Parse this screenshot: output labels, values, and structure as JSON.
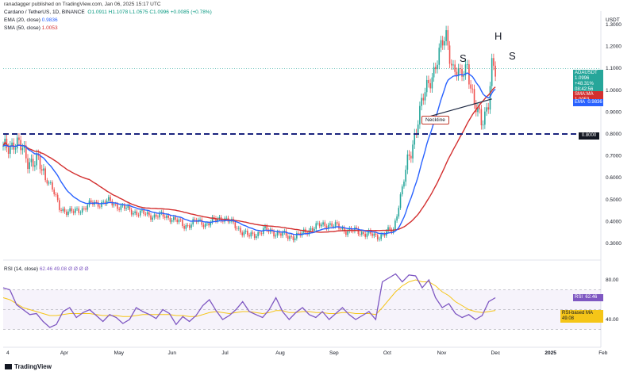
{
  "header": {
    "publisher": "ranadagger published on TradingView.com, Jan 06, 2025 15:17 UTC",
    "symbol": "Cardano / TetherUS, 1D, BINANCE",
    "ohlc": "O1.0911 H1.1078 L1.0575 C1.0996 +0.0085 (+0.78%)",
    "ema_label": "EMA (20, close)",
    "ema_value": "0.9836",
    "sma_label": "SMA (50, close)",
    "sma_value": "1.0053",
    "rsi_label": "RSI (14, close)",
    "rsi_values": "62.46 49.08 Ø Ø Ø Ø"
  },
  "currency": "USDT",
  "footer": {
    "brand": "TradingView"
  },
  "annotations": {
    "s_left": "S",
    "head": "H",
    "s_right": "S",
    "neckline": "Neckline"
  },
  "badges": {
    "symbol_name": "ADAUSDT",
    "price": "1.0996",
    "change": "+48.31%",
    "countdown": "08:42:56",
    "sma_tag": "SMA:MA",
    "sma_val": "1.0053",
    "ema_tag": "EMA",
    "ema_val": "0.9836",
    "level": "0.8000",
    "rsi_tag": "RSI",
    "rsi_val": "62.46",
    "rsi_ma_tag": "RSI-based MA",
    "rsi_ma_val": "49.08"
  },
  "colors": {
    "up": "#26a69a",
    "down": "#ef5350",
    "ema": "#2962ff",
    "sma": "#d32f2f",
    "rsi": "#7e57c2",
    "rsi_ma": "#f5c518",
    "level": "#1a237e"
  },
  "chart_data": [
    {
      "type": "candlestick",
      "title": "Cardano / TetherUS, 1D, BINANCE",
      "x_ticks": [
        "4",
        "Apr",
        "May",
        "Jun",
        "Jul",
        "Aug",
        "Sep",
        "Oct",
        "Nov",
        "Dec",
        "2025",
        "Feb"
      ],
      "y_ticks": [
        "0.3000",
        "0.4000",
        "0.5000",
        "0.6000",
        "0.7000",
        "0.8000",
        "0.9000",
        "1.0000",
        "1.1000",
        "1.2000",
        "1.3000"
      ],
      "ylim": [
        0.26,
        1.34
      ],
      "x_range_days": [
        0,
        340
      ],
      "anchors": [
        [
          0,
          0.72
        ],
        [
          6,
          0.77
        ],
        [
          14,
          0.69
        ],
        [
          20,
          0.66
        ],
        [
          27,
          0.57
        ],
        [
          32,
          0.46
        ],
        [
          40,
          0.44
        ],
        [
          50,
          0.48
        ],
        [
          60,
          0.49
        ],
        [
          72,
          0.45
        ],
        [
          82,
          0.43
        ],
        [
          95,
          0.42
        ],
        [
          103,
          0.38
        ],
        [
          110,
          0.4
        ],
        [
          116,
          0.39
        ],
        [
          125,
          0.42
        ],
        [
          132,
          0.38
        ],
        [
          140,
          0.33
        ],
        [
          148,
          0.36
        ],
        [
          155,
          0.35
        ],
        [
          162,
          0.33
        ],
        [
          170,
          0.34
        ],
        [
          175,
          0.37
        ],
        [
          185,
          0.39
        ],
        [
          195,
          0.36
        ],
        [
          205,
          0.35
        ],
        [
          212,
          0.33
        ],
        [
          218,
          0.35
        ],
        [
          222,
          0.36
        ],
        [
          226,
          0.52
        ],
        [
          232,
          0.72
        ],
        [
          236,
          0.88
        ],
        [
          240,
          0.98
        ],
        [
          244,
          1.08
        ],
        [
          248,
          1.16
        ],
        [
          252,
          1.25
        ],
        [
          256,
          1.1
        ],
        [
          260,
          1.05
        ],
        [
          264,
          1.13
        ],
        [
          268,
          0.92
        ],
        [
          272,
          0.86
        ],
        [
          276,
          0.95
        ],
        [
          278,
          1.1
        ],
        [
          280,
          1.07
        ]
      ],
      "level_line": 0.8,
      "neckline": {
        "from": [
          238,
          0.87
        ],
        "to": [
          278,
          0.96
        ]
      },
      "last_close": 1.0996,
      "ema20_last": 0.9836,
      "sma50_last": 1.0053
    },
    {
      "type": "line",
      "title": "RSI (14, close)",
      "y_ticks": [
        "40.00",
        "80.00"
      ],
      "ylim": [
        20,
        92
      ],
      "series": [
        {
          "name": "RSI",
          "values": [
            72,
            70,
            55,
            50,
            45,
            46,
            38,
            32,
            35,
            48,
            52,
            42,
            47,
            50,
            44,
            38,
            45,
            42,
            36,
            40,
            52,
            48,
            45,
            41,
            50,
            46,
            35,
            43,
            38,
            44,
            54,
            60,
            49,
            40,
            44,
            50,
            58,
            48,
            45,
            42,
            50,
            62,
            48,
            40,
            47,
            52,
            45,
            42,
            48,
            40,
            46,
            52,
            45,
            40,
            44,
            48,
            40,
            78,
            82,
            86,
            78,
            85,
            84,
            72,
            80,
            62,
            52,
            56,
            46,
            42,
            45,
            40,
            44,
            58,
            62
          ]
        },
        {
          "name": "RSI-based MA",
          "values": [
            62,
            60,
            56,
            52,
            50,
            48,
            46,
            44,
            44,
            45,
            46,
            46,
            46,
            46,
            45,
            44,
            44,
            44,
            43,
            43,
            44,
            45,
            45,
            45,
            45,
            45,
            44,
            44,
            43,
            43,
            45,
            47,
            48,
            47,
            46,
            47,
            48,
            48,
            47,
            46,
            47,
            49,
            49,
            47,
            47,
            48,
            48,
            47,
            47,
            46,
            46,
            47,
            47,
            46,
            46,
            46,
            45,
            52,
            60,
            68,
            74,
            78,
            80,
            78,
            78,
            74,
            68,
            64,
            58,
            54,
            50,
            48,
            47,
            48,
            49.08
          ]
        }
      ]
    }
  ]
}
